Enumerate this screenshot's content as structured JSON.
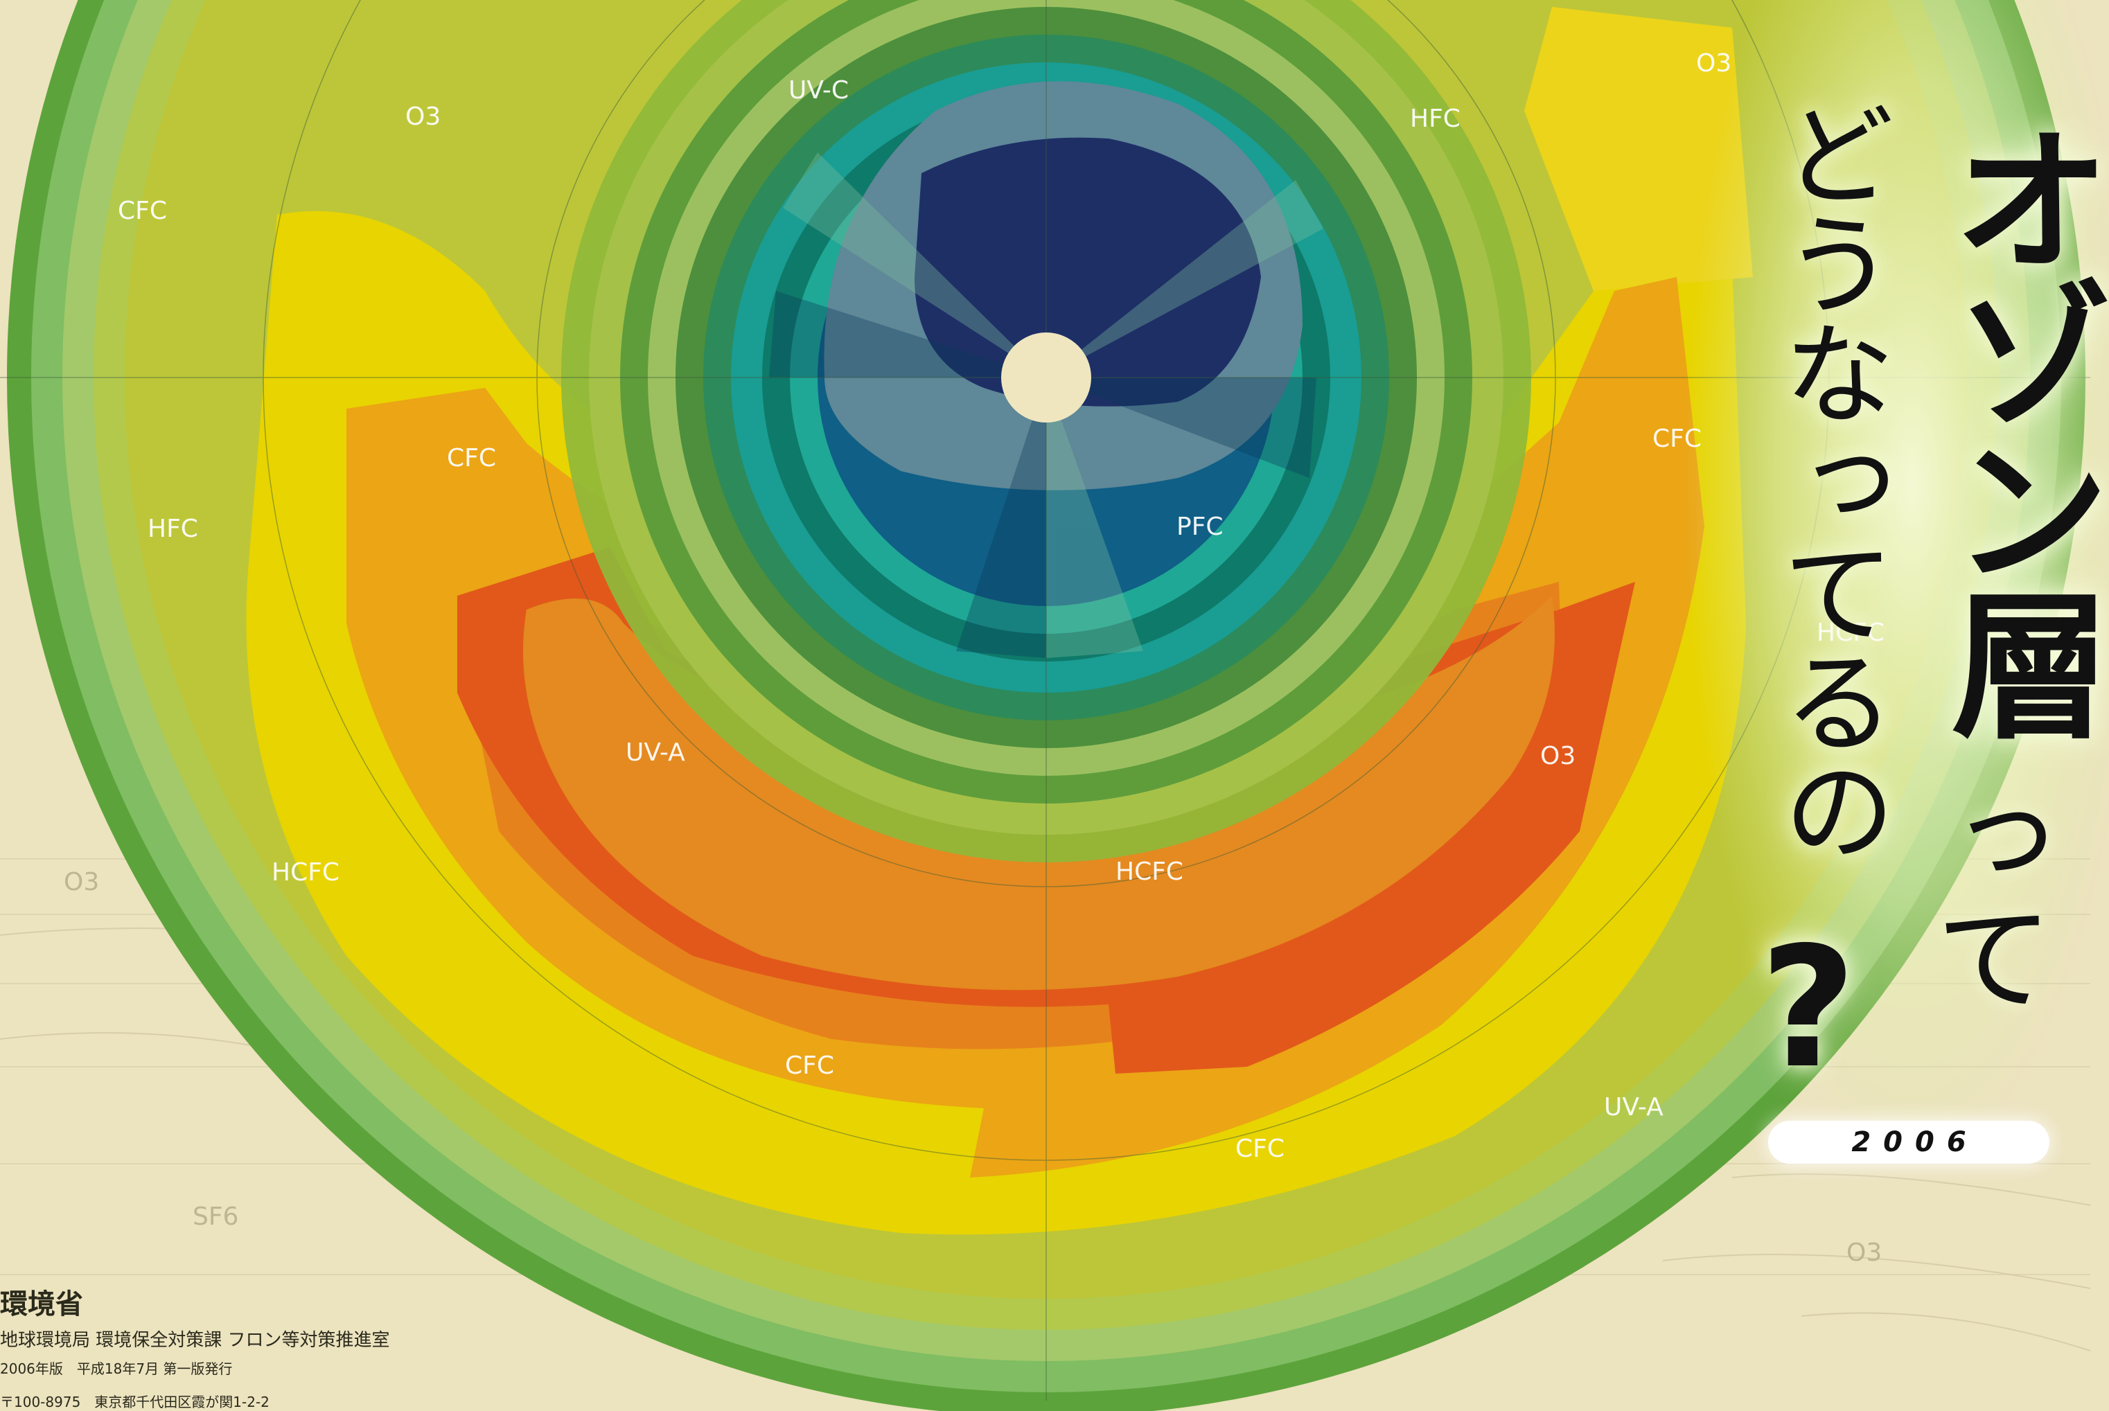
{
  "title": {
    "main": "オゾン層",
    "sub": "どうなってるの",
    "tail": "って",
    "question_mark": "?",
    "year": "2006"
  },
  "publisher": {
    "name": "環境省",
    "department": "地球環境局 環境保全対策課 フロン等対策推進室",
    "edition": "2006年版　平成18年7月 第一版発行",
    "address": "〒100-8975　東京都千代田区霞が関1-2-2"
  },
  "map_labels": [
    {
      "name": "label-uvc",
      "text": "UV-C"
    },
    {
      "name": "label-hfc",
      "text": "HFC"
    },
    {
      "name": "label-o3",
      "text": "O3"
    },
    {
      "name": "label-cfc",
      "text": "CFC"
    },
    {
      "name": "label-pfc",
      "text": "PFC"
    },
    {
      "name": "label-hcfc",
      "text": "HCFC"
    },
    {
      "name": "label-uva",
      "text": "UV-A"
    },
    {
      "name": "label-sf6",
      "text": "SF6"
    }
  ],
  "colors": {
    "background": "#ece3bf",
    "ozone_hole_center": "#1e2f66",
    "blue_zone": "#0f5f86",
    "teal_zone": "#1a9d93",
    "green_zone": "#6aa843",
    "yellow_zone": "#e8d400",
    "orange_zone": "#e89a18",
    "red_orange_zone": "#e2581a"
  },
  "icons": [
    "north-pole-marker-icon",
    "question-mark-icon"
  ]
}
